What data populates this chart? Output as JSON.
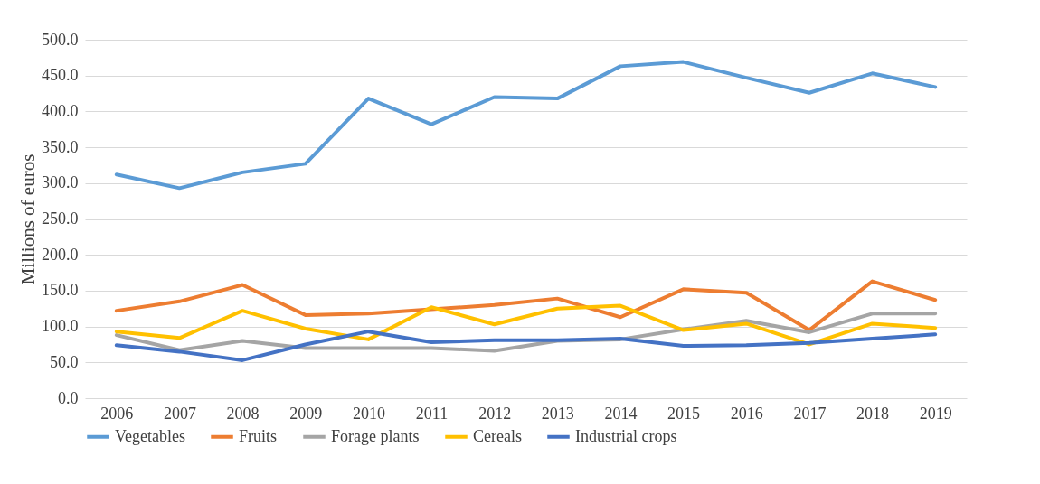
{
  "chart_data": {
    "type": "line",
    "ylabel": "Millions of euros",
    "categories": [
      "2006",
      "2007",
      "2008",
      "2009",
      "2010",
      "2011",
      "2012",
      "2013",
      "2014",
      "2015",
      "2016",
      "2017",
      "2018",
      "2019"
    ],
    "ylim": [
      0,
      500
    ],
    "yticks": [
      {
        "value": 0,
        "label": "0.0"
      },
      {
        "value": 50,
        "label": "50.0"
      },
      {
        "value": 100,
        "label": "100.0"
      },
      {
        "value": 150,
        "label": "150.0"
      },
      {
        "value": 200,
        "label": "200.0"
      },
      {
        "value": 250,
        "label": "250.0"
      },
      {
        "value": 300,
        "label": "300.0"
      },
      {
        "value": 350,
        "label": "350.0"
      },
      {
        "value": 400,
        "label": "400.0"
      },
      {
        "value": 450,
        "label": "450.0"
      },
      {
        "value": 500,
        "label": "500.0"
      }
    ],
    "grid": "y",
    "legend": "bottom",
    "marker": "none",
    "line_style": "solid",
    "series": [
      {
        "name": "Vegetables",
        "color": "#5b9bd5",
        "values": [
          312,
          293,
          315,
          327,
          418,
          382,
          420,
          418,
          463,
          469,
          447,
          426,
          453,
          434
        ]
      },
      {
        "name": "Fruits",
        "color": "#ed7d31",
        "values": [
          122,
          135,
          158,
          116,
          118,
          124,
          130,
          139,
          113,
          152,
          147,
          95,
          163,
          137
        ]
      },
      {
        "name": "Forage plants",
        "color": "#a5a5a5",
        "values": [
          88,
          67,
          80,
          70,
          70,
          70,
          66,
          80,
          82,
          96,
          108,
          92,
          118,
          118
        ]
      },
      {
        "name": "Cereals",
        "color": "#ffc000",
        "values": [
          93,
          84,
          122,
          97,
          82,
          127,
          103,
          125,
          129,
          95,
          104,
          75,
          104,
          98
        ]
      },
      {
        "name": "Industrial crops",
        "color": "#4472c4",
        "values": [
          74,
          65,
          53,
          75,
          93,
          78,
          81,
          81,
          83,
          73,
          74,
          77,
          83,
          89
        ]
      }
    ]
  }
}
